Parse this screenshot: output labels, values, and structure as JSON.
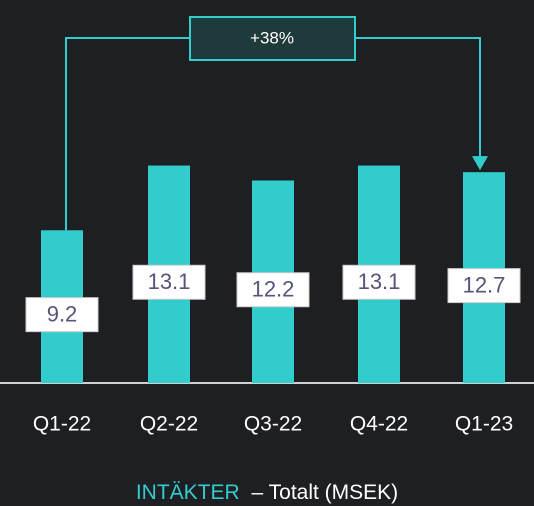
{
  "chart_data": {
    "type": "bar",
    "categories": [
      "Q1-22",
      "Q2-22",
      "Q3-22",
      "Q4-22",
      "Q1-23"
    ],
    "values": [
      9.2,
      13.1,
      12.2,
      13.1,
      12.7
    ],
    "color": "#33cccc",
    "ylim": [
      0,
      20
    ],
    "annotation": "+38%",
    "series_label": "INTÄKTER",
    "axis_label": "– Totalt (MSEK)"
  }
}
